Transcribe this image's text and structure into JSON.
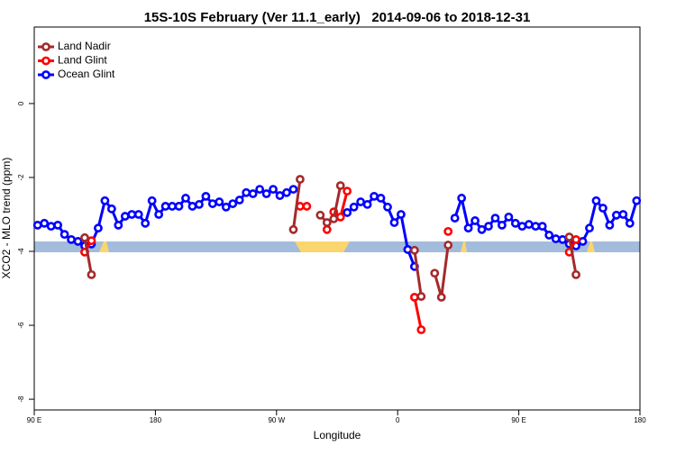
{
  "chart_data": {
    "type": "line",
    "title": "15S-10S February (Ver 11.1_early)   2014-09-06 to 2018-12-31",
    "x_label": "Longitude",
    "y_label": "XCO2 - MLO trend (ppm)",
    "legend": "top-left",
    "xlim": [
      90,
      540
    ],
    "ylim": [
      -8.29,
      2.07
    ],
    "xticks": [
      {
        "value": 90,
        "label": "90 E"
      },
      180,
      {
        "value": 270,
        "label": "90 W"
      },
      {
        "value": 360,
        "label": "0"
      },
      {
        "value": 450,
        "label": "90 E"
      },
      {
        "value": 540,
        "label": "180"
      }
    ],
    "yticks": [
      0,
      -2,
      -4,
      -6,
      -8
    ],
    "x": [
      92.5,
      97.5,
      102.5,
      107.5,
      112.5,
      117.5,
      122.5,
      127.5,
      132.5,
      137.5,
      142.5,
      147.5,
      152.5,
      157.5,
      162.5,
      167.5,
      172.5,
      177.5,
      182.5,
      187.5,
      192.5,
      197.5,
      202.5,
      207.5,
      212.5,
      217.5,
      222.5,
      227.5,
      232.5,
      237.5,
      242.5,
      247.5,
      252.5,
      257.5,
      262.5,
      267.5,
      272.5,
      277.5,
      282.5,
      287.5,
      292.5,
      297.5,
      302.5,
      307.5,
      312.5,
      317.5,
      322.5,
      327.5,
      332.5,
      337.5,
      342.5,
      347.5,
      352.5,
      357.5,
      362.5,
      367.5,
      372.5,
      377.5,
      382.5,
      387.5,
      392.5,
      397.5,
      402.5,
      407.5,
      412.5,
      417.5,
      422.5,
      427.5,
      432.5,
      437.5,
      442.5,
      447.5,
      452.5,
      457.5,
      462.5,
      467.5,
      472.5,
      477.5,
      482.5,
      487.5,
      492.5,
      497.5,
      502.5,
      507.5,
      512.5,
      517.5,
      522.5,
      527.5,
      532.5,
      537.5
    ],
    "series": [
      {
        "name": "Land Nadir",
        "color": "#a52a2a",
        "values": [
          null,
          null,
          null,
          null,
          null,
          null,
          null,
          -3.63,
          -4.63,
          null,
          null,
          null,
          null,
          null,
          null,
          null,
          null,
          null,
          null,
          null,
          null,
          null,
          null,
          null,
          null,
          null,
          null,
          null,
          null,
          null,
          null,
          null,
          null,
          null,
          null,
          null,
          null,
          null,
          -3.41,
          -2.05,
          null,
          null,
          -3.02,
          -3.22,
          -3.12,
          -2.22,
          null,
          null,
          null,
          null,
          null,
          null,
          null,
          null,
          null,
          null,
          -3.97,
          -5.22,
          null,
          -4.59,
          -5.24,
          -3.83,
          null,
          null,
          null,
          null,
          null,
          null,
          null,
          null,
          null,
          null,
          null,
          null,
          null,
          null,
          null,
          null,
          null,
          -3.61,
          -4.63,
          null,
          null,
          null,
          null,
          null,
          null,
          null,
          null,
          null
        ]
      },
      {
        "name": "Land Glint",
        "color": "#ff0000",
        "values": [
          null,
          null,
          null,
          null,
          null,
          null,
          null,
          -4.02,
          -3.71,
          null,
          null,
          null,
          null,
          null,
          null,
          null,
          null,
          null,
          null,
          null,
          null,
          null,
          null,
          null,
          null,
          null,
          null,
          null,
          null,
          null,
          null,
          null,
          null,
          null,
          null,
          null,
          null,
          null,
          null,
          -2.78,
          -2.78,
          null,
          null,
          -3.41,
          -2.93,
          -3.07,
          -2.37,
          null,
          null,
          null,
          null,
          null,
          null,
          null,
          null,
          null,
          -5.24,
          -6.12,
          null,
          null,
          null,
          -3.46,
          null,
          null,
          null,
          null,
          null,
          null,
          null,
          null,
          null,
          null,
          null,
          null,
          null,
          null,
          null,
          null,
          null,
          -4.02,
          -3.68,
          null,
          null,
          null,
          null,
          null,
          null,
          null,
          null,
          null
        ]
      },
      {
        "name": "Ocean Glint",
        "color": "#0000ff",
        "values": [
          -3.29,
          -3.24,
          -3.32,
          -3.29,
          -3.54,
          -3.68,
          -3.73,
          -3.85,
          -3.8,
          -3.37,
          -2.63,
          -2.85,
          -3.29,
          -3.05,
          -3.0,
          -3.0,
          -3.24,
          -2.63,
          -3.0,
          -2.78,
          -2.78,
          -2.78,
          -2.56,
          -2.78,
          -2.73,
          -2.51,
          -2.71,
          -2.66,
          -2.8,
          -2.71,
          -2.61,
          -2.41,
          -2.44,
          -2.32,
          -2.44,
          -2.32,
          -2.49,
          -2.41,
          -2.32,
          null,
          null,
          null,
          null,
          null,
          null,
          null,
          -2.95,
          -2.8,
          -2.66,
          -2.73,
          -2.51,
          -2.56,
          -2.8,
          -3.22,
          -3.0,
          -3.95,
          -4.41,
          null,
          null,
          null,
          null,
          null,
          -3.1,
          -2.56,
          -3.37,
          -3.17,
          -3.41,
          -3.32,
          -3.1,
          -3.29,
          -3.07,
          -3.24,
          -3.32,
          -3.27,
          -3.32,
          -3.32,
          -3.56,
          -3.66,
          -3.68,
          -3.8,
          -3.85,
          -3.73,
          -3.37,
          -2.63,
          -2.83,
          -3.29,
          -3.02,
          -3.0,
          -3.24,
          -2.63
        ]
      }
    ]
  }
}
